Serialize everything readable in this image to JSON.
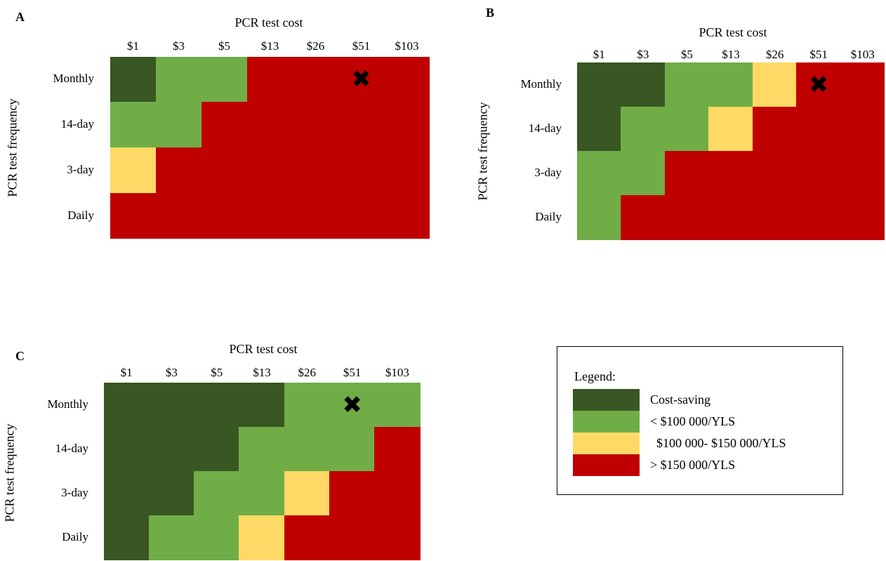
{
  "colors": {
    "cost_saving": "#385723",
    "lt100": "#70ad47",
    "mid": "#ffd966",
    "gt150": "#c00000"
  },
  "legend": {
    "title": "Legend:",
    "items": [
      {
        "key": "cost_saving",
        "label": "Cost-saving"
      },
      {
        "key": "lt100",
        "label": "< $100 000/YLS"
      },
      {
        "key": "mid",
        "label": "  $100 000- $150 000/YLS"
      },
      {
        "key": "gt150",
        "label": "> $150 000/YLS"
      }
    ]
  },
  "chart_data": [
    {
      "type": "heatmap",
      "panel": "A",
      "xlabel": "PCR test cost",
      "ylabel": "PCR test frequency",
      "x": [
        "$1",
        "$3",
        "$5",
        "$13",
        "$26",
        "$51",
        "$103"
      ],
      "y": [
        "Monthly",
        "14-day",
        "3-day",
        "Daily"
      ],
      "cells": [
        [
          "cost_saving",
          "lt100",
          "lt100",
          "gt150",
          "gt150",
          "gt150",
          "gt150"
        ],
        [
          "lt100",
          "lt100",
          "gt150",
          "gt150",
          "gt150",
          "gt150",
          "gt150"
        ],
        [
          "mid",
          "gt150",
          "gt150",
          "gt150",
          "gt150",
          "gt150",
          "gt150"
        ],
        [
          "gt150",
          "gt150",
          "gt150",
          "gt150",
          "gt150",
          "gt150",
          "gt150"
        ]
      ],
      "marker": {
        "x": "$51",
        "y": "Monthly",
        "symbol": "✖"
      }
    },
    {
      "type": "heatmap",
      "panel": "B",
      "xlabel": "PCR test cost",
      "ylabel": "PCR test frequency",
      "x": [
        "$1",
        "$3",
        "$5",
        "$13",
        "$26",
        "$51",
        "$103"
      ],
      "y": [
        "Monthly",
        "14-day",
        "3-day",
        "Daily"
      ],
      "cells": [
        [
          "cost_saving",
          "cost_saving",
          "lt100",
          "lt100",
          "mid",
          "gt150",
          "gt150"
        ],
        [
          "cost_saving",
          "lt100",
          "lt100",
          "mid",
          "gt150",
          "gt150",
          "gt150"
        ],
        [
          "lt100",
          "lt100",
          "gt150",
          "gt150",
          "gt150",
          "gt150",
          "gt150"
        ],
        [
          "lt100",
          "gt150",
          "gt150",
          "gt150",
          "gt150",
          "gt150",
          "gt150"
        ]
      ],
      "marker": {
        "x": "$51",
        "y": "Monthly",
        "symbol": "✖"
      }
    },
    {
      "type": "heatmap",
      "panel": "C",
      "xlabel": "PCR test cost",
      "ylabel": "PCR test frequency",
      "x": [
        "$1",
        "$3",
        "$5",
        "$13",
        "$26",
        "$51",
        "$103"
      ],
      "y": [
        "Monthly",
        "14-day",
        "3-day",
        "Daily"
      ],
      "cells": [
        [
          "cost_saving",
          "cost_saving",
          "cost_saving",
          "cost_saving",
          "lt100",
          "lt100",
          "lt100"
        ],
        [
          "cost_saving",
          "cost_saving",
          "cost_saving",
          "lt100",
          "lt100",
          "lt100",
          "gt150"
        ],
        [
          "cost_saving",
          "cost_saving",
          "lt100",
          "lt100",
          "mid",
          "gt150",
          "gt150"
        ],
        [
          "cost_saving",
          "lt100",
          "lt100",
          "mid",
          "gt150",
          "gt150",
          "gt150"
        ]
      ],
      "marker": {
        "x": "$51",
        "y": "Monthly",
        "symbol": "✖"
      }
    }
  ]
}
